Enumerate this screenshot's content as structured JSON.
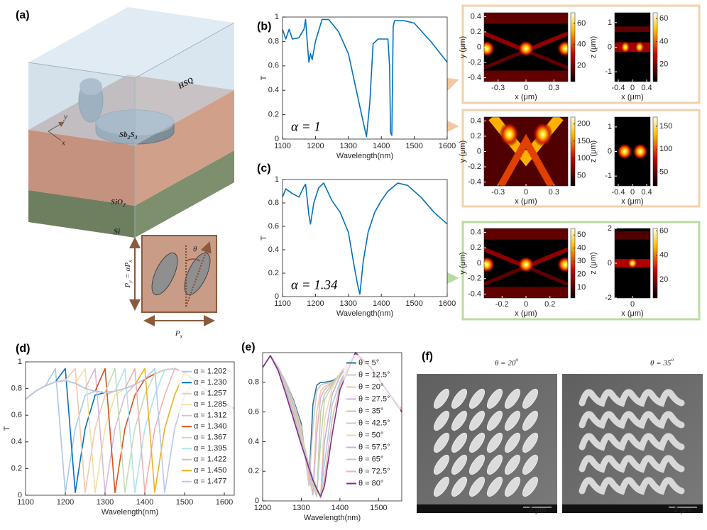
{
  "panel_labels": [
    "(a)",
    "(b)",
    "(c)",
    "(d)",
    "(e)",
    "(f)"
  ],
  "diagram": {
    "hsq": "HSQ",
    "axis_y": "y",
    "axis_x": "x",
    "sb2s3": [
      "Sb",
      "2",
      "S",
      "3"
    ],
    "sio2": [
      "SiO",
      "2"
    ],
    "si": "Si",
    "theta": "θ",
    "py": [
      "P",
      "y",
      " = αP",
      "x"
    ],
    "px": [
      "P",
      "x"
    ]
  },
  "chart_data": [
    {
      "type": "line",
      "xlabel": "Wavelength(nm)",
      "ylabel": "T",
      "annotation": "α = 1",
      "color": "#0072bd",
      "x": [
        1100,
        1110,
        1120,
        1130,
        1150,
        1165,
        1170,
        1175,
        1180,
        1185,
        1190,
        1200,
        1220,
        1240,
        1270,
        1300,
        1320,
        1340,
        1355,
        1365,
        1375,
        1390,
        1420,
        1425,
        1428,
        1432,
        1436,
        1440,
        1470,
        1500,
        1550,
        1600
      ],
      "values": [
        0.9,
        0.82,
        0.9,
        0.82,
        0.83,
        0.9,
        0.98,
        0.8,
        0.63,
        0.7,
        0.65,
        0.8,
        0.98,
        0.98,
        0.88,
        0.7,
        0.45,
        0.2,
        0.02,
        0.3,
        0.78,
        0.82,
        0.82,
        0.6,
        0.05,
        0.03,
        0.92,
        0.97,
        0.97,
        0.95,
        0.8,
        0.63
      ],
      "xlim": [
        1100,
        1600
      ],
      "xticks": [
        1100,
        1200,
        1300,
        1400,
        1500,
        1600
      ],
      "ylim": [
        0,
        1
      ],
      "yticks": [
        0,
        0.2,
        0.4,
        0.6,
        0.8,
        1
      ]
    },
    {
      "type": "line",
      "xlabel": "Wavelength(nm)",
      "ylabel": "T",
      "annotation": "α = 1.34",
      "color": "#0072bd",
      "x": [
        1100,
        1110,
        1130,
        1150,
        1165,
        1170,
        1180,
        1185,
        1195,
        1210,
        1225,
        1250,
        1275,
        1300,
        1315,
        1328,
        1335,
        1345,
        1360,
        1380,
        1400,
        1420,
        1450,
        1480,
        1520,
        1560,
        1600
      ],
      "values": [
        0.85,
        0.92,
        0.88,
        0.85,
        0.94,
        0.96,
        0.7,
        0.62,
        0.8,
        0.93,
        0.97,
        0.82,
        0.72,
        0.55,
        0.3,
        0.1,
        0.02,
        0.3,
        0.55,
        0.72,
        0.82,
        0.9,
        0.97,
        0.95,
        0.85,
        0.72,
        0.62
      ],
      "xlim": [
        1100,
        1600
      ],
      "xticks": [
        1100,
        1200,
        1300,
        1400,
        1500,
        1600
      ],
      "ylim": [
        0,
        1
      ],
      "yticks": [
        0,
        0.2,
        0.4,
        0.6,
        0.8,
        1
      ]
    },
    {
      "type": "line",
      "xlabel": "Wavelength(nm)",
      "ylabel": "T",
      "legend": "upper right",
      "x": [
        1100,
        1125,
        1150,
        1175,
        1200,
        1225,
        1250,
        1275,
        1300,
        1325,
        1350,
        1375,
        1400,
        1425,
        1450,
        1475,
        1500,
        1525,
        1550,
        1575,
        1600,
        1625
      ],
      "xlim": [
        1100,
        1625
      ],
      "xticks": [
        1100,
        1200,
        1300,
        1400,
        1500,
        1600
      ],
      "ylim": [
        0,
        1
      ],
      "yticks": [
        0,
        0.2,
        0.4,
        0.6,
        0.8,
        1
      ],
      "series": [
        {
          "name": "α = 1.202",
          "color": "#a8c8e8",
          "values": [
            0.72,
            0.78,
            0.82,
            0.95,
            0.02,
            0.5,
            0.75,
            0.78,
            0.77,
            0.78,
            0.8,
            0.83,
            0.87,
            0.91,
            0.94,
            0.95,
            0.92,
            0.86,
            0.8,
            0.74,
            0.69,
            0.65
          ]
        },
        {
          "name": "α = 1.230",
          "color": "#0072bd",
          "values": [
            0.72,
            0.78,
            0.82,
            0.85,
            0.95,
            0.02,
            0.5,
            0.75,
            0.77,
            0.78,
            0.8,
            0.83,
            0.87,
            0.91,
            0.94,
            0.95,
            0.92,
            0.86,
            0.8,
            0.74,
            0.69,
            0.65
          ]
        },
        {
          "name": "α = 1.257",
          "color": "#f5c8a8",
          "values": [
            0.72,
            0.78,
            0.82,
            0.85,
            0.86,
            0.95,
            0.02,
            0.5,
            0.75,
            0.78,
            0.8,
            0.83,
            0.87,
            0.91,
            0.94,
            0.95,
            0.92,
            0.86,
            0.8,
            0.74,
            0.69,
            0.65
          ]
        },
        {
          "name": "α = 1.285",
          "color": "#f2e0a0",
          "values": [
            0.72,
            0.78,
            0.82,
            0.85,
            0.86,
            0.84,
            0.95,
            0.02,
            0.5,
            0.75,
            0.8,
            0.83,
            0.87,
            0.91,
            0.94,
            0.95,
            0.92,
            0.86,
            0.8,
            0.74,
            0.69,
            0.65
          ]
        },
        {
          "name": "α = 1.312",
          "color": "#d8b8e0",
          "values": [
            0.72,
            0.78,
            0.82,
            0.85,
            0.86,
            0.84,
            0.8,
            0.95,
            0.02,
            0.5,
            0.75,
            0.83,
            0.87,
            0.91,
            0.94,
            0.95,
            0.92,
            0.86,
            0.8,
            0.74,
            0.69,
            0.65
          ]
        },
        {
          "name": "α = 1.340",
          "color": "#d95319",
          "values": [
            0.72,
            0.78,
            0.82,
            0.85,
            0.86,
            0.84,
            0.8,
            0.78,
            0.95,
            0.02,
            0.5,
            0.75,
            0.87,
            0.91,
            0.94,
            0.95,
            0.92,
            0.86,
            0.8,
            0.74,
            0.69,
            0.65
          ]
        },
        {
          "name": "α = 1.367",
          "color": "#c0e0b0",
          "values": [
            0.72,
            0.78,
            0.82,
            0.85,
            0.86,
            0.84,
            0.8,
            0.78,
            0.77,
            0.95,
            0.02,
            0.5,
            0.75,
            0.91,
            0.94,
            0.95,
            0.92,
            0.86,
            0.8,
            0.74,
            0.69,
            0.65
          ]
        },
        {
          "name": "α = 1.395",
          "color": "#b0e0ee",
          "values": [
            0.72,
            0.78,
            0.82,
            0.85,
            0.86,
            0.84,
            0.8,
            0.78,
            0.77,
            0.78,
            0.95,
            0.02,
            0.5,
            0.75,
            0.94,
            0.95,
            0.92,
            0.86,
            0.8,
            0.74,
            0.69,
            0.65
          ]
        },
        {
          "name": "α = 1.422",
          "color": "#f0b0b0",
          "values": [
            0.72,
            0.78,
            0.82,
            0.85,
            0.86,
            0.84,
            0.8,
            0.78,
            0.77,
            0.78,
            0.8,
            0.95,
            0.02,
            0.5,
            0.75,
            0.95,
            0.92,
            0.86,
            0.8,
            0.74,
            0.69,
            0.65
          ]
        },
        {
          "name": "α = 1.450",
          "color": "#edb120",
          "values": [
            0.72,
            0.78,
            0.82,
            0.85,
            0.86,
            0.84,
            0.8,
            0.78,
            0.77,
            0.78,
            0.8,
            0.83,
            0.95,
            0.02,
            0.5,
            0.75,
            0.92,
            0.86,
            0.8,
            0.74,
            0.69,
            0.65
          ]
        },
        {
          "name": "α = 1.477",
          "color": "#b8c8f0",
          "values": [
            0.72,
            0.78,
            0.82,
            0.85,
            0.86,
            0.84,
            0.8,
            0.78,
            0.77,
            0.78,
            0.8,
            0.83,
            0.87,
            0.95,
            0.02,
            0.5,
            0.75,
            0.86,
            0.8,
            0.74,
            0.69,
            0.65
          ]
        }
      ]
    },
    {
      "type": "line",
      "xlabel": "Wavelength(nm)",
      "legend": "upper right",
      "x": [
        1200,
        1220,
        1240,
        1260,
        1280,
        1300,
        1310,
        1320,
        1330,
        1340,
        1350,
        1360,
        1380,
        1400,
        1440,
        1480,
        1520,
        1560
      ],
      "xlim": [
        1200,
        1560
      ],
      "xticks": [
        1200,
        1300,
        1400,
        1500
      ],
      "ylim": [
        0,
        1
      ],
      "yticks": [
        0,
        0.2,
        0.4,
        0.6,
        0.8
      ],
      "series": [
        {
          "name": "θ = 5°",
          "color": "#2f6f8f",
          "values": [
            0.9,
            0.98,
            0.9,
            0.8,
            0.68,
            0.52,
            0.3,
            0.12,
            0.65,
            0.78,
            0.8,
            0.8,
            0.81,
            0.84,
            0.98,
            0.9,
            0.75,
            0.62
          ]
        },
        {
          "name": "θ = 12.5°",
          "color": "#c9c9c9",
          "values": [
            0.9,
            0.98,
            0.9,
            0.8,
            0.67,
            0.5,
            0.3,
            0.1,
            0.5,
            0.74,
            0.78,
            0.79,
            0.8,
            0.84,
            0.98,
            0.9,
            0.75,
            0.62
          ]
        },
        {
          "name": "θ = 20°",
          "color": "#f2c9a0",
          "values": [
            0.9,
            0.98,
            0.9,
            0.79,
            0.66,
            0.49,
            0.32,
            0.15,
            0.05,
            0.6,
            0.74,
            0.77,
            0.8,
            0.84,
            0.98,
            0.9,
            0.75,
            0.62
          ]
        },
        {
          "name": "θ = 27.5°",
          "color": "#d9b3d9",
          "values": [
            0.9,
            0.98,
            0.9,
            0.79,
            0.65,
            0.47,
            0.34,
            0.2,
            0.04,
            0.45,
            0.7,
            0.75,
            0.8,
            0.85,
            0.98,
            0.9,
            0.75,
            0.62
          ]
        },
        {
          "name": "θ = 35°",
          "color": "#c8c8a0",
          "values": [
            0.9,
            0.98,
            0.89,
            0.78,
            0.63,
            0.46,
            0.35,
            0.23,
            0.1,
            0.03,
            0.6,
            0.72,
            0.79,
            0.86,
            0.99,
            0.9,
            0.75,
            0.61
          ]
        },
        {
          "name": "θ = 42.5°",
          "color": "#b8d8b8",
          "values": [
            0.9,
            0.98,
            0.89,
            0.77,
            0.62,
            0.44,
            0.34,
            0.24,
            0.12,
            0.04,
            0.4,
            0.68,
            0.78,
            0.86,
            0.99,
            0.9,
            0.75,
            0.61
          ]
        },
        {
          "name": "θ = 50°",
          "color": "#f3d7a8",
          "values": [
            0.9,
            0.98,
            0.89,
            0.76,
            0.6,
            0.43,
            0.33,
            0.24,
            0.14,
            0.06,
            0.03,
            0.55,
            0.76,
            0.86,
            0.99,
            0.9,
            0.75,
            0.61
          ]
        },
        {
          "name": "θ = 57.5°",
          "color": "#c8b0d8",
          "values": [
            0.9,
            0.98,
            0.89,
            0.75,
            0.59,
            0.41,
            0.32,
            0.24,
            0.15,
            0.08,
            0.02,
            0.4,
            0.72,
            0.84,
            1.0,
            0.9,
            0.75,
            0.6
          ]
        },
        {
          "name": "θ = 65°",
          "color": "#a8d0d8",
          "values": [
            0.9,
            0.98,
            0.88,
            0.74,
            0.57,
            0.4,
            0.31,
            0.23,
            0.15,
            0.09,
            0.03,
            0.25,
            0.65,
            0.8,
            1.0,
            0.9,
            0.75,
            0.6
          ]
        },
        {
          "name": "θ = 72.5°",
          "color": "#e8b8a8",
          "values": [
            0.9,
            0.98,
            0.88,
            0.73,
            0.56,
            0.39,
            0.3,
            0.22,
            0.14,
            0.08,
            0.02,
            0.15,
            0.55,
            0.78,
            1.0,
            0.9,
            0.75,
            0.6
          ]
        },
        {
          "name": "θ = 80°",
          "color": "#7e2f8e",
          "values": [
            0.9,
            0.98,
            0.88,
            0.72,
            0.55,
            0.38,
            0.3,
            0.22,
            0.14,
            0.08,
            0.03,
            0.1,
            0.45,
            0.75,
            1.0,
            0.9,
            0.75,
            0.6
          ]
        }
      ]
    }
  ],
  "field_maps": [
    {
      "xlabel": "x (μm)",
      "ylabel": "y (μm)",
      "xlim": [
        -0.45,
        0.45
      ],
      "xticks": [
        -0.3,
        0,
        0.3
      ],
      "ylim": [
        -0.45,
        0.45
      ],
      "yticks": [
        -0.4,
        -0.2,
        0,
        0.2,
        0.4
      ],
      "clim": [
        5,
        70
      ],
      "cticks": [
        20,
        40,
        60
      ]
    },
    {
      "xlabel": "x (μm)",
      "ylabel": "z (μm)",
      "xlim": [
        -0.5,
        0.5
      ],
      "xticks": [
        -0.4,
        0,
        0.4
      ],
      "ylim": [
        -1.4,
        1.4
      ],
      "yticks": [
        -1,
        0,
        1
      ],
      "clim": [
        5,
        65
      ],
      "cticks": [
        20,
        40,
        60
      ]
    },
    {
      "xlabel": "x (μm)",
      "ylabel": "y (μm)",
      "xlim": [
        -0.45,
        0.45
      ],
      "xticks": [
        -0.3,
        0,
        0.3
      ],
      "ylim": [
        -0.45,
        0.45
      ],
      "yticks": [
        -0.4,
        -0.2,
        0,
        0.2,
        0.4
      ],
      "clim": [
        20,
        220
      ],
      "cticks": [
        50,
        100,
        150,
        200
      ]
    },
    {
      "xlabel": "x (μm)",
      "ylabel": "z (μm)",
      "xlim": [
        -0.5,
        0.5
      ],
      "xticks": [
        -0.4,
        0,
        0.4
      ],
      "ylim": [
        -1.4,
        1.4
      ],
      "yticks": [
        -1,
        0,
        1
      ],
      "clim": [
        20,
        170
      ],
      "cticks": [
        50,
        100,
        150
      ]
    },
    {
      "xlabel": "x (μm)",
      "ylabel": "y (μm)",
      "xlim": [
        -0.35,
        0.35
      ],
      "xticks": [
        -0.2,
        0,
        0.2
      ],
      "ylim": [
        -0.45,
        0.45
      ],
      "yticks": [
        -0.4,
        -0.2,
        0,
        0.2,
        0.4
      ],
      "clim": [
        2,
        55
      ],
      "cticks": [
        10,
        20,
        30,
        40,
        50
      ]
    },
    {
      "xlabel": "x (μm)",
      "ylabel": "z (μm)",
      "xlim": [
        -0.15,
        0.15
      ],
      "xticks": [
        0
      ],
      "ylim": [
        -2,
        2
      ],
      "yticks": [
        -2,
        0,
        2
      ],
      "clim": [
        5,
        62
      ],
      "cticks": [
        20,
        40,
        60
      ]
    }
  ],
  "sem": {
    "titles": [
      [
        "θ = 20",
        "o"
      ],
      [
        "θ = 35",
        "o"
      ]
    ],
    "scale_bar": "2 μm"
  }
}
